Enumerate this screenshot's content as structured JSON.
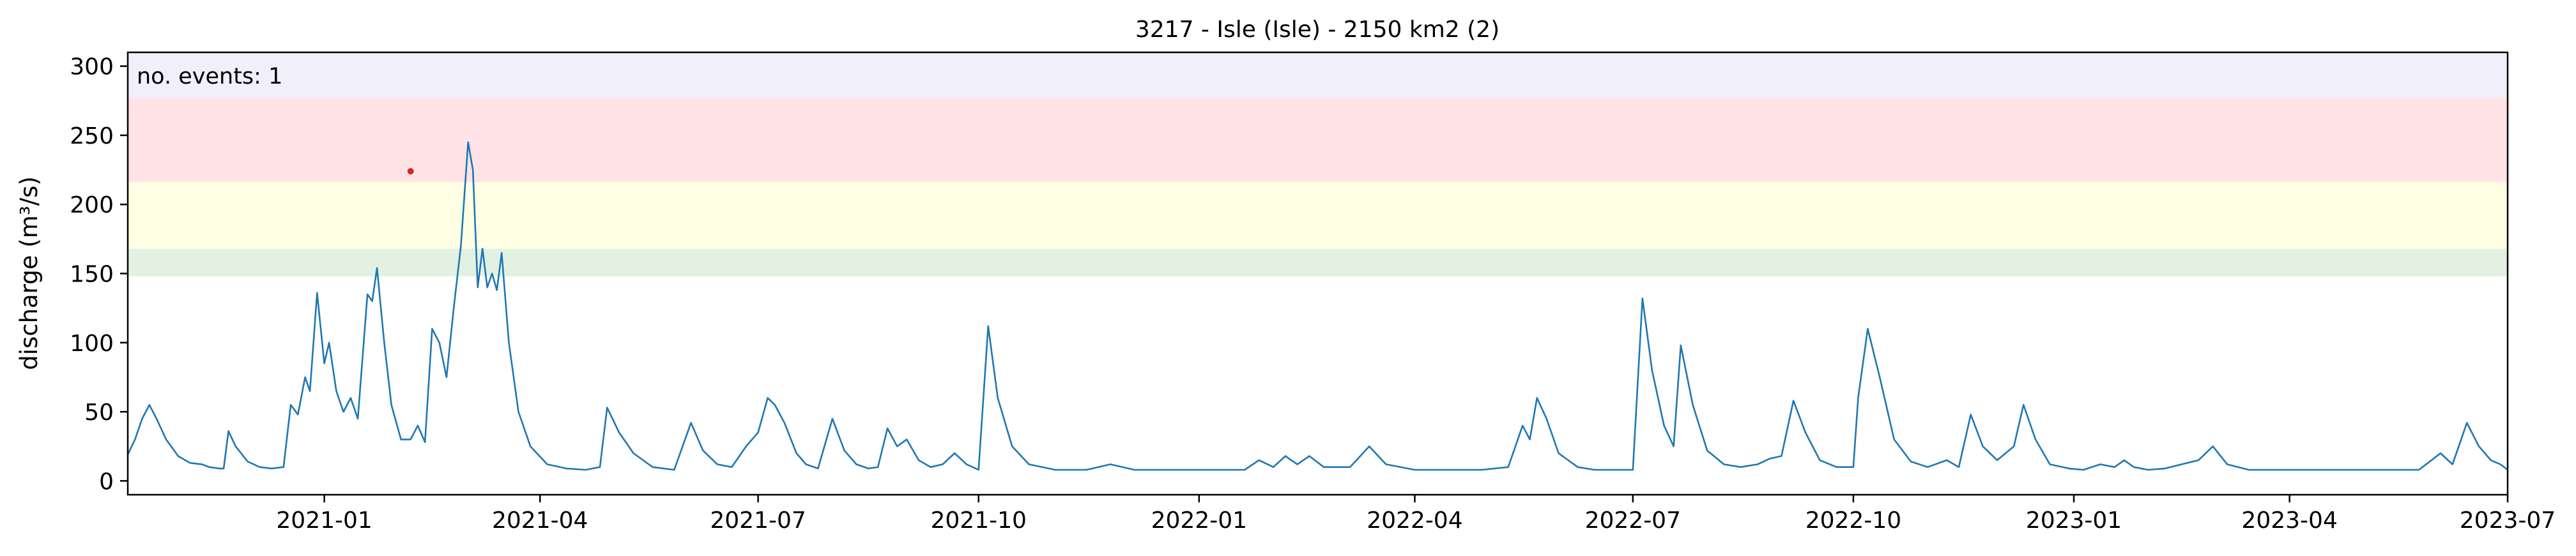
{
  "chart_data": {
    "type": "line",
    "title": "3217 - Isle (Isle) - 2150 km2 (2)",
    "xlabel": "",
    "ylabel": "discharge (m³/s)",
    "xlim": [
      "2020-10-11",
      "2023-07-01"
    ],
    "ylim": [
      -10,
      310
    ],
    "grid": false,
    "x_ticks": [
      "2021-01",
      "2021-04",
      "2021-07",
      "2021-10",
      "2022-01",
      "2022-04",
      "2022-07",
      "2022-10",
      "2023-01",
      "2023-04",
      "2023-07"
    ],
    "y_ticks": [
      0,
      50,
      100,
      150,
      200,
      250,
      300
    ],
    "threshold_bands": [
      {
        "from": 148,
        "to": 168,
        "color": "#e3f1e3"
      },
      {
        "from": 168,
        "to": 216,
        "color": "#ffffe3"
      },
      {
        "from": 216,
        "to": 277,
        "color": "#ffe3e6"
      },
      {
        "from": 277,
        "to": 310,
        "color": "#f1effa"
      }
    ],
    "annotation": {
      "text": "no. events: 1",
      "color": "#d62728"
    },
    "event_marker": {
      "x": "2021-02-06",
      "y": 224,
      "color": "#d62728"
    },
    "series": [
      {
        "color": "#1f77b4",
        "points": [
          [
            "2020-10-11",
            19
          ],
          [
            "2020-10-14",
            30
          ],
          [
            "2020-10-17",
            45
          ],
          [
            "2020-10-20",
            55
          ],
          [
            "2020-10-23",
            45
          ],
          [
            "2020-10-27",
            30
          ],
          [
            "2020-11-01",
            18
          ],
          [
            "2020-11-06",
            13
          ],
          [
            "2020-11-11",
            12
          ],
          [
            "2020-11-14",
            10
          ],
          [
            "2020-11-18",
            9
          ],
          [
            "2020-11-20",
            9
          ],
          [
            "2020-11-22",
            36
          ],
          [
            "2020-11-25",
            25
          ],
          [
            "2020-11-30",
            14
          ],
          [
            "2020-12-05",
            10
          ],
          [
            "2020-12-10",
            9
          ],
          [
            "2020-12-15",
            10
          ],
          [
            "2020-12-18",
            55
          ],
          [
            "2020-12-21",
            48
          ],
          [
            "2020-12-24",
            75
          ],
          [
            "2020-12-26",
            65
          ],
          [
            "2020-12-29",
            136
          ],
          [
            "2021-01-01",
            85
          ],
          [
            "2021-01-03",
            100
          ],
          [
            "2021-01-06",
            65
          ],
          [
            "2021-01-09",
            50
          ],
          [
            "2021-01-12",
            60
          ],
          [
            "2021-01-15",
            45
          ],
          [
            "2021-01-19",
            135
          ],
          [
            "2021-01-21",
            130
          ],
          [
            "2021-01-23",
            154
          ],
          [
            "2021-01-26",
            100
          ],
          [
            "2021-01-29",
            55
          ],
          [
            "2021-02-02",
            30
          ],
          [
            "2021-02-06",
            30
          ],
          [
            "2021-02-09",
            40
          ],
          [
            "2021-02-12",
            28
          ],
          [
            "2021-02-15",
            110
          ],
          [
            "2021-02-18",
            100
          ],
          [
            "2021-02-21",
            75
          ],
          [
            "2021-02-24",
            125
          ],
          [
            "2021-02-27",
            170
          ],
          [
            "2021-03-02",
            245
          ],
          [
            "2021-03-04",
            225
          ],
          [
            "2021-03-06",
            140
          ],
          [
            "2021-03-08",
            168
          ],
          [
            "2021-03-10",
            140
          ],
          [
            "2021-03-12",
            150
          ],
          [
            "2021-03-14",
            138
          ],
          [
            "2021-03-16",
            165
          ],
          [
            "2021-03-19",
            100
          ],
          [
            "2021-03-23",
            50
          ],
          [
            "2021-03-28",
            25
          ],
          [
            "2021-04-04",
            12
          ],
          [
            "2021-04-12",
            9
          ],
          [
            "2021-04-20",
            8
          ],
          [
            "2021-04-26",
            10
          ],
          [
            "2021-04-29",
            53
          ],
          [
            "2021-05-04",
            35
          ],
          [
            "2021-05-10",
            20
          ],
          [
            "2021-05-18",
            10
          ],
          [
            "2021-05-27",
            8
          ],
          [
            "2021-06-03",
            42
          ],
          [
            "2021-06-08",
            22
          ],
          [
            "2021-06-14",
            12
          ],
          [
            "2021-06-20",
            10
          ],
          [
            "2021-06-26",
            25
          ],
          [
            "2021-07-01",
            35
          ],
          [
            "2021-07-05",
            60
          ],
          [
            "2021-07-08",
            55
          ],
          [
            "2021-07-12",
            42
          ],
          [
            "2021-07-17",
            20
          ],
          [
            "2021-07-21",
            12
          ],
          [
            "2021-07-26",
            9
          ],
          [
            "2021-08-01",
            45
          ],
          [
            "2021-08-06",
            22
          ],
          [
            "2021-08-11",
            12
          ],
          [
            "2021-08-16",
            9
          ],
          [
            "2021-08-20",
            10
          ],
          [
            "2021-08-24",
            38
          ],
          [
            "2021-08-28",
            25
          ],
          [
            "2021-09-01",
            30
          ],
          [
            "2021-09-06",
            15
          ],
          [
            "2021-09-11",
            10
          ],
          [
            "2021-09-16",
            12
          ],
          [
            "2021-09-21",
            20
          ],
          [
            "2021-09-26",
            12
          ],
          [
            "2021-10-01",
            8
          ],
          [
            "2021-10-05",
            112
          ],
          [
            "2021-10-09",
            60
          ],
          [
            "2021-10-15",
            25
          ],
          [
            "2021-10-22",
            12
          ],
          [
            "2021-11-02",
            8
          ],
          [
            "2021-11-15",
            8
          ],
          [
            "2021-11-25",
            12
          ],
          [
            "2021-12-05",
            8
          ],
          [
            "2021-12-20",
            8
          ],
          [
            "2022-01-05",
            8
          ],
          [
            "2022-01-12",
            8
          ],
          [
            "2022-01-20",
            8
          ],
          [
            "2022-01-26",
            15
          ],
          [
            "2022-02-01",
            10
          ],
          [
            "2022-02-06",
            18
          ],
          [
            "2022-02-11",
            12
          ],
          [
            "2022-02-16",
            18
          ],
          [
            "2022-02-22",
            10
          ],
          [
            "2022-03-05",
            10
          ],
          [
            "2022-03-13",
            25
          ],
          [
            "2022-03-20",
            12
          ],
          [
            "2022-04-01",
            8
          ],
          [
            "2022-04-15",
            8
          ],
          [
            "2022-04-29",
            8
          ],
          [
            "2022-05-10",
            10
          ],
          [
            "2022-05-16",
            40
          ],
          [
            "2022-05-19",
            30
          ],
          [
            "2022-05-22",
            60
          ],
          [
            "2022-05-26",
            45
          ],
          [
            "2022-05-31",
            20
          ],
          [
            "2022-06-08",
            10
          ],
          [
            "2022-06-15",
            8
          ],
          [
            "2022-06-25",
            8
          ],
          [
            "2022-07-01",
            8
          ],
          [
            "2022-07-05",
            132
          ],
          [
            "2022-07-09",
            80
          ],
          [
            "2022-07-14",
            40
          ],
          [
            "2022-07-18",
            25
          ],
          [
            "2022-07-21",
            98
          ],
          [
            "2022-07-26",
            55
          ],
          [
            "2022-08-01",
            22
          ],
          [
            "2022-08-08",
            12
          ],
          [
            "2022-08-15",
            10
          ],
          [
            "2022-08-22",
            12
          ],
          [
            "2022-08-27",
            16
          ],
          [
            "2022-09-01",
            18
          ],
          [
            "2022-09-06",
            58
          ],
          [
            "2022-09-11",
            35
          ],
          [
            "2022-09-17",
            15
          ],
          [
            "2022-09-24",
            10
          ],
          [
            "2022-10-01",
            10
          ],
          [
            "2022-10-03",
            60
          ],
          [
            "2022-10-07",
            110
          ],
          [
            "2022-10-12",
            75
          ],
          [
            "2022-10-18",
            30
          ],
          [
            "2022-10-25",
            14
          ],
          [
            "2022-11-01",
            10
          ],
          [
            "2022-11-09",
            15
          ],
          [
            "2022-11-14",
            10
          ],
          [
            "2022-11-19",
            48
          ],
          [
            "2022-11-24",
            25
          ],
          [
            "2022-11-30",
            15
          ],
          [
            "2022-12-07",
            25
          ],
          [
            "2022-12-11",
            55
          ],
          [
            "2022-12-16",
            30
          ],
          [
            "2022-12-22",
            12
          ],
          [
            "2022-12-30",
            9
          ],
          [
            "2023-01-05",
            8
          ],
          [
            "2023-01-12",
            12
          ],
          [
            "2023-01-18",
            10
          ],
          [
            "2023-01-22",
            15
          ],
          [
            "2023-01-26",
            10
          ],
          [
            "2023-02-01",
            8
          ],
          [
            "2023-02-08",
            9
          ],
          [
            "2023-02-15",
            12
          ],
          [
            "2023-02-22",
            15
          ],
          [
            "2023-02-28",
            25
          ],
          [
            "2023-03-06",
            12
          ],
          [
            "2023-03-15",
            8
          ],
          [
            "2023-03-25",
            8
          ],
          [
            "2023-04-05",
            8
          ],
          [
            "2023-04-15",
            8
          ],
          [
            "2023-04-25",
            8
          ],
          [
            "2023-05-05",
            8
          ],
          [
            "2023-05-15",
            8
          ],
          [
            "2023-05-25",
            8
          ],
          [
            "2023-06-03",
            20
          ],
          [
            "2023-06-08",
            12
          ],
          [
            "2023-06-14",
            42
          ],
          [
            "2023-06-19",
            25
          ],
          [
            "2023-06-24",
            15
          ],
          [
            "2023-06-28",
            12
          ],
          [
            "2023-07-01",
            8
          ]
        ]
      }
    ]
  }
}
